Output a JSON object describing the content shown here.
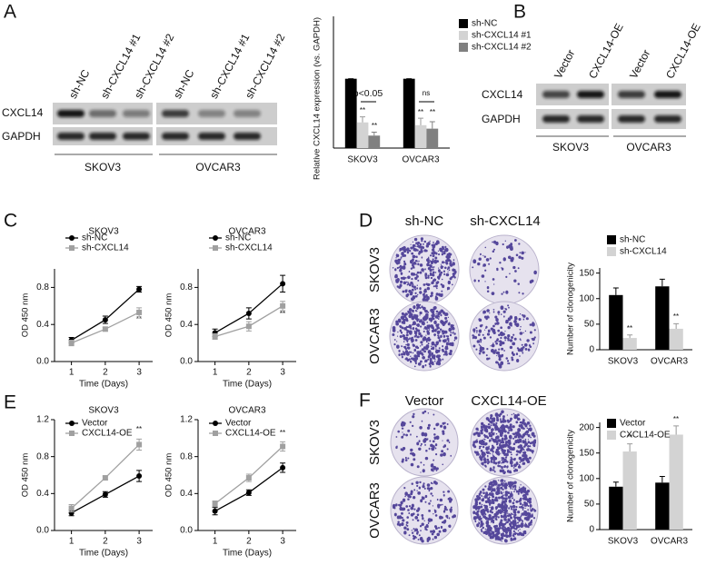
{
  "figure": {
    "panels": [
      "A",
      "B",
      "C",
      "D",
      "E",
      "F"
    ],
    "blot_a": {
      "lanes": [
        "sh-NC",
        "sh-CXCL14 #1",
        "sh-CXCL14 #2",
        "sh-NC",
        "sh-CXCL14 #1",
        "sh-CXCL14 #2"
      ],
      "rows": [
        "CXCL14",
        "GAPDH"
      ],
      "cell_lines": [
        "SKOV3",
        "OVCAR3"
      ]
    },
    "blot_b": {
      "lanes": [
        "Vector",
        "CXCL14-OE",
        "Vector",
        "CXCL14-OE"
      ],
      "rows": [
        "CXCL14",
        "GAPDH"
      ],
      "cell_lines": [
        "SKOV3",
        "OVCAR3"
      ]
    },
    "colony_d": {
      "columns": [
        "sh-NC",
        "sh-CXCL14"
      ],
      "rows": [
        "SKOV3",
        "OVCAR3"
      ]
    },
    "colony_f": {
      "columns": [
        "Vector",
        "CXCL14-OE"
      ],
      "rows": [
        "SKOV3",
        "OVCAR3"
      ]
    }
  },
  "chart_data": [
    {
      "type": "bar",
      "ylabel": "Relative CXCL14 expression (vs. GAPDH)",
      "categories": [
        "SKOV3",
        "OVCAR3"
      ],
      "series": [
        {
          "name": "sh-NC",
          "color": "#000000",
          "values": [
            1,
            1
          ],
          "errors": [
            0,
            0
          ]
        },
        {
          "name": "sh-CXCL14 #1",
          "color": "#d3d3d3",
          "values": [
            0.37,
            0.33
          ],
          "errors": [
            0.08,
            0.1
          ]
        },
        {
          "name": "sh-CXCL14 #2",
          "color": "#808080",
          "values": [
            0.18,
            0.28
          ],
          "errors": [
            0.05,
            0.1
          ]
        }
      ],
      "ylim": [
        0,
        1.9
      ],
      "annotations": [
        "**",
        "**",
        "**",
        "**",
        "p<0.05",
        "ns"
      ]
    },
    {
      "type": "line",
      "title": "SKOV3",
      "xlabel": "Time (Days)",
      "ylabel": "OD 450 nm",
      "x": [
        1,
        2,
        3
      ],
      "series": [
        {
          "name": "sh-NC",
          "color": "#000000",
          "marker": "circle",
          "values": [
            0.23,
            0.45,
            0.78
          ],
          "errors": [
            0.03,
            0.04,
            0.03
          ]
        },
        {
          "name": "sh-CXCL14",
          "color": "#a0a0a0",
          "marker": "square",
          "values": [
            0.2,
            0.35,
            0.53
          ],
          "errors": [
            0.03,
            0.02,
            0.05
          ]
        }
      ],
      "xlim": [
        0.5,
        3.4
      ],
      "xticks": [
        1,
        2,
        3
      ],
      "ylim": [
        0,
        1
      ],
      "yticks": [
        {
          "value": 0,
          "label": "0.0"
        },
        0.4,
        0.8
      ],
      "annotations": [
        "**"
      ]
    },
    {
      "type": "line",
      "title": "OVCAR3",
      "xlabel": "Time (Days)",
      "ylabel": "OD 450 nm",
      "x": [
        1,
        2,
        3
      ],
      "series": [
        {
          "name": "sh-NC",
          "color": "#000000",
          "marker": "circle",
          "values": [
            0.31,
            0.52,
            0.84
          ],
          "errors": [
            0.04,
            0.06,
            0.09
          ]
        },
        {
          "name": "sh-CXCL14",
          "color": "#a0a0a0",
          "marker": "square",
          "values": [
            0.27,
            0.38,
            0.6
          ],
          "errors": [
            0.03,
            0.05,
            0.05
          ]
        }
      ],
      "xlim": [
        0.5,
        3.4
      ],
      "xticks": [
        1,
        2,
        3
      ],
      "ylim": [
        0,
        1
      ],
      "yticks": [
        {
          "value": 0,
          "label": "0.0"
        },
        0.4,
        0.8
      ],
      "annotations": [
        "**"
      ]
    },
    {
      "type": "bar",
      "ylabel": "Number of clonogenicity",
      "categories": [
        "SKOV3",
        "OVCAR3"
      ],
      "series": [
        {
          "name": "sh-NC",
          "color": "#000000",
          "values": [
            107,
            124
          ],
          "errors": [
            14,
            14
          ]
        },
        {
          "name": "sh-CXCL14",
          "color": "#d3d3d3",
          "values": [
            23,
            41
          ],
          "errors": [
            6,
            10
          ]
        }
      ],
      "ylim": [
        0,
        160
      ],
      "yticks": [
        0,
        50,
        100,
        150
      ],
      "annotations": [
        "**",
        "**"
      ]
    },
    {
      "type": "line",
      "title": "SKOV3",
      "xlabel": "Time (Days)",
      "ylabel": "OD 450 nm",
      "x": [
        1,
        2,
        3
      ],
      "series": [
        {
          "name": "Vector",
          "color": "#000000",
          "marker": "circle",
          "values": [
            0.19,
            0.39,
            0.59
          ],
          "errors": [
            0.03,
            0.03,
            0.06
          ]
        },
        {
          "name": "CXCL14-OE",
          "color": "#a0a0a0",
          "marker": "square",
          "values": [
            0.24,
            0.57,
            0.93
          ],
          "errors": [
            0.04,
            0.02,
            0.06
          ]
        }
      ],
      "xlim": [
        0.5,
        3.4
      ],
      "xticks": [
        1,
        2,
        3
      ],
      "ylim": [
        0,
        1.2
      ],
      "yticks": [
        {
          "value": 0,
          "label": "0.0"
        },
        0.4,
        0.8,
        1.2
      ],
      "annotations": [
        "**"
      ]
    },
    {
      "type": "line",
      "title": "OVCAR3",
      "xlabel": "Time (Days)",
      "ylabel": "OD 450 nm",
      "x": [
        1,
        2,
        3
      ],
      "series": [
        {
          "name": "Vector",
          "color": "#000000",
          "marker": "circle",
          "values": [
            0.21,
            0.41,
            0.68
          ],
          "errors": [
            0.04,
            0.03,
            0.05
          ]
        },
        {
          "name": "CXCL14-OE",
          "color": "#a0a0a0",
          "marker": "square",
          "values": [
            0.29,
            0.57,
            0.91
          ],
          "errors": [
            0.03,
            0.04,
            0.05
          ]
        }
      ],
      "xlim": [
        0.5,
        3.4
      ],
      "xticks": [
        1,
        2,
        3
      ],
      "ylim": [
        0,
        1.2
      ],
      "yticks": [
        {
          "value": 0,
          "label": "0.0"
        },
        0.4,
        0.8,
        1.2
      ],
      "annotations": [
        "**"
      ]
    },
    {
      "type": "bar",
      "ylabel": "Number of clonogenicity",
      "categories": [
        "SKOV3",
        "OVCAR3"
      ],
      "series": [
        {
          "name": "Vector",
          "color": "#000000",
          "values": [
            84,
            92
          ],
          "errors": [
            9,
            12
          ]
        },
        {
          "name": "CXCL14-OE",
          "color": "#d3d3d3",
          "values": [
            153,
            186
          ],
          "errors": [
            15,
            17
          ]
        }
      ],
      "ylim": [
        0,
        210
      ],
      "yticks": [
        0,
        50,
        100,
        150,
        200
      ],
      "annotations": [
        "**",
        "**"
      ]
    }
  ]
}
